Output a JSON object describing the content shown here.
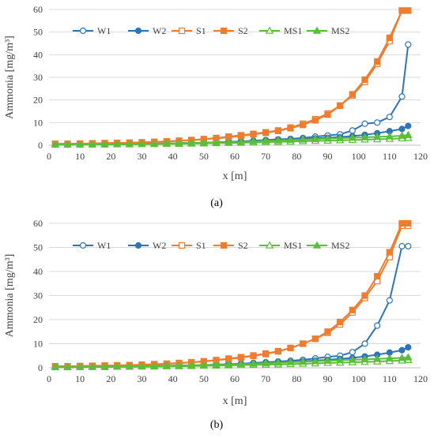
{
  "panels": [
    {
      "label": "(a)"
    },
    {
      "label": "(b)"
    }
  ],
  "chart_data": [
    {
      "type": "line",
      "xlabel": "x [m]",
      "ylabel": "Ammonia  [mg/m³]",
      "xlim": [
        0,
        120
      ],
      "ylim": [
        0,
        60
      ],
      "xticks": [
        0,
        10,
        20,
        30,
        40,
        50,
        60,
        70,
        80,
        90,
        100,
        110,
        120
      ],
      "yticks": [
        0,
        10,
        20,
        30,
        40,
        50,
        60
      ],
      "grid": "horizontal",
      "legend": "top",
      "x": [
        2,
        6,
        10,
        14,
        18,
        22,
        26,
        30,
        34,
        38,
        42,
        46,
        50,
        54,
        58,
        62,
        66,
        70,
        74,
        78,
        82,
        86,
        90,
        94,
        98,
        102,
        106,
        110,
        114,
        116
      ],
      "series": [
        {
          "name": "W1",
          "color": "#2e75b6",
          "marker": "circle-open",
          "values": [
            0.3,
            0.3,
            0.3,
            0.4,
            0.4,
            0.5,
            0.5,
            0.6,
            0.7,
            0.8,
            0.9,
            1.0,
            1.1,
            1.3,
            1.5,
            1.7,
            2.0,
            2.3,
            2.6,
            2.8,
            3.2,
            3.8,
            4.3,
            4.8,
            6.5,
            9.5,
            10.0,
            12.5,
            21.5,
            44.5
          ]
        },
        {
          "name": "W2",
          "color": "#2e75b6",
          "marker": "circle-filled",
          "values": [
            0.3,
            0.3,
            0.3,
            0.4,
            0.4,
            0.5,
            0.5,
            0.6,
            0.7,
            0.8,
            0.9,
            1.0,
            1.1,
            1.2,
            1.4,
            1.6,
            1.8,
            2.0,
            2.2,
            2.4,
            2.7,
            3.0,
            3.3,
            3.6,
            4.0,
            4.6,
            5.3,
            6.2,
            7.2,
            8.5
          ]
        },
        {
          "name": "S1",
          "color": "#ed7d31",
          "marker": "square-open",
          "values": [
            0.6,
            0.6,
            0.7,
            0.8,
            0.9,
            1.0,
            1.1,
            1.3,
            1.5,
            1.7,
            2.0,
            2.3,
            2.7,
            3.2,
            3.8,
            4.4,
            5.0,
            5.7,
            6.5,
            7.8,
            9.5,
            11.5,
            14.0,
            17.5,
            22.0,
            28.0,
            36.0,
            46.0,
            59.5,
            59.5
          ]
        },
        {
          "name": "S2",
          "color": "#ed7d31",
          "marker": "square-filled",
          "values": [
            0.6,
            0.6,
            0.7,
            0.8,
            0.9,
            1.0,
            1.1,
            1.2,
            1.4,
            1.6,
            1.9,
            2.2,
            2.6,
            3.0,
            3.5,
            4.1,
            4.8,
            5.5,
            6.3,
            7.5,
            9.0,
            11.0,
            13.5,
            17.5,
            22.5,
            29.0,
            37.0,
            47.5,
            59.5,
            59.5
          ]
        },
        {
          "name": "MS1",
          "color": "#5cbd3b",
          "marker": "triangle-open",
          "values": [
            0.2,
            0.2,
            0.3,
            0.3,
            0.3,
            0.4,
            0.4,
            0.5,
            0.5,
            0.6,
            0.6,
            0.7,
            0.8,
            0.9,
            1.0,
            1.1,
            1.2,
            1.4,
            1.5,
            1.6,
            1.8,
            1.9,
            2.0,
            2.2,
            2.3,
            2.5,
            2.6,
            2.8,
            3.0,
            3.2
          ]
        },
        {
          "name": "MS2",
          "color": "#5cbd3b",
          "marker": "triangle-filled",
          "values": [
            0.3,
            0.3,
            0.3,
            0.4,
            0.4,
            0.5,
            0.5,
            0.6,
            0.7,
            0.8,
            0.9,
            1.0,
            1.1,
            1.2,
            1.3,
            1.5,
            1.7,
            1.9,
            2.1,
            2.3,
            2.5,
            2.7,
            2.9,
            3.1,
            3.3,
            3.5,
            3.7,
            3.9,
            4.2,
            4.5
          ]
        }
      ]
    },
    {
      "type": "line",
      "xlabel": "x [m]",
      "ylabel": "Ammonia [mg/m³]",
      "xlim": [
        0,
        120
      ],
      "ylim": [
        0,
        60
      ],
      "xticks": [
        0,
        10,
        20,
        30,
        40,
        50,
        60,
        70,
        80,
        90,
        100,
        110,
        120
      ],
      "yticks": [
        0,
        10,
        20,
        30,
        40,
        50,
        60
      ],
      "grid": "horizontal",
      "legend": "top",
      "x": [
        2,
        6,
        10,
        14,
        18,
        22,
        26,
        30,
        34,
        38,
        42,
        46,
        50,
        54,
        58,
        62,
        66,
        70,
        74,
        78,
        82,
        86,
        90,
        94,
        98,
        102,
        106,
        110,
        114,
        116
      ],
      "series": [
        {
          "name": "W1",
          "color": "#2e75b6",
          "marker": "circle-open",
          "values": [
            0.3,
            0.3,
            0.3,
            0.4,
            0.4,
            0.5,
            0.5,
            0.6,
            0.7,
            0.8,
            0.9,
            1.0,
            1.1,
            1.3,
            1.5,
            1.7,
            2.0,
            2.3,
            2.6,
            2.9,
            3.3,
            3.9,
            4.5,
            5.0,
            6.5,
            10.0,
            17.5,
            28.0,
            50.5,
            50.5
          ]
        },
        {
          "name": "W2",
          "color": "#2e75b6",
          "marker": "circle-filled",
          "values": [
            0.3,
            0.3,
            0.3,
            0.4,
            0.4,
            0.5,
            0.5,
            0.6,
            0.7,
            0.8,
            0.9,
            1.0,
            1.1,
            1.2,
            1.4,
            1.6,
            1.8,
            2.0,
            2.2,
            2.4,
            2.7,
            3.0,
            3.3,
            3.7,
            4.1,
            4.7,
            5.4,
            6.3,
            7.3,
            8.5
          ]
        },
        {
          "name": "S1",
          "color": "#ed7d31",
          "marker": "square-open",
          "values": [
            0.6,
            0.6,
            0.7,
            0.8,
            0.9,
            1.0,
            1.1,
            1.3,
            1.5,
            1.7,
            2.0,
            2.3,
            2.7,
            3.2,
            3.8,
            4.4,
            5.1,
            5.9,
            6.9,
            8.2,
            10.0,
            12.0,
            14.5,
            18.0,
            23.0,
            29.0,
            36.0,
            46.0,
            59.0,
            59.0
          ]
        },
        {
          "name": "S2",
          "color": "#ed7d31",
          "marker": "square-filled",
          "values": [
            0.6,
            0.6,
            0.7,
            0.8,
            0.9,
            1.0,
            1.1,
            1.2,
            1.4,
            1.6,
            1.9,
            2.2,
            2.6,
            3.1,
            3.6,
            4.2,
            4.9,
            5.7,
            6.8,
            8.2,
            10.0,
            12.0,
            15.0,
            19.0,
            24.0,
            30.0,
            38.0,
            48.0,
            60.0,
            60.0
          ]
        },
        {
          "name": "MS1",
          "color": "#5cbd3b",
          "marker": "triangle-open",
          "values": [
            0.2,
            0.2,
            0.3,
            0.3,
            0.3,
            0.4,
            0.4,
            0.5,
            0.5,
            0.6,
            0.6,
            0.7,
            0.8,
            0.9,
            1.0,
            1.1,
            1.2,
            1.3,
            1.4,
            1.5,
            1.7,
            1.8,
            2.0,
            2.1,
            2.3,
            2.4,
            2.6,
            2.8,
            3.0,
            3.2
          ]
        },
        {
          "name": "MS2",
          "color": "#5cbd3b",
          "marker": "triangle-filled",
          "values": [
            0.3,
            0.3,
            0.3,
            0.4,
            0.4,
            0.5,
            0.5,
            0.6,
            0.7,
            0.8,
            0.9,
            1.0,
            1.1,
            1.2,
            1.3,
            1.5,
            1.7,
            1.9,
            2.1,
            2.3,
            2.5,
            2.7,
            2.9,
            3.1,
            3.3,
            3.5,
            3.7,
            3.9,
            4.1,
            4.3
          ]
        }
      ]
    }
  ]
}
